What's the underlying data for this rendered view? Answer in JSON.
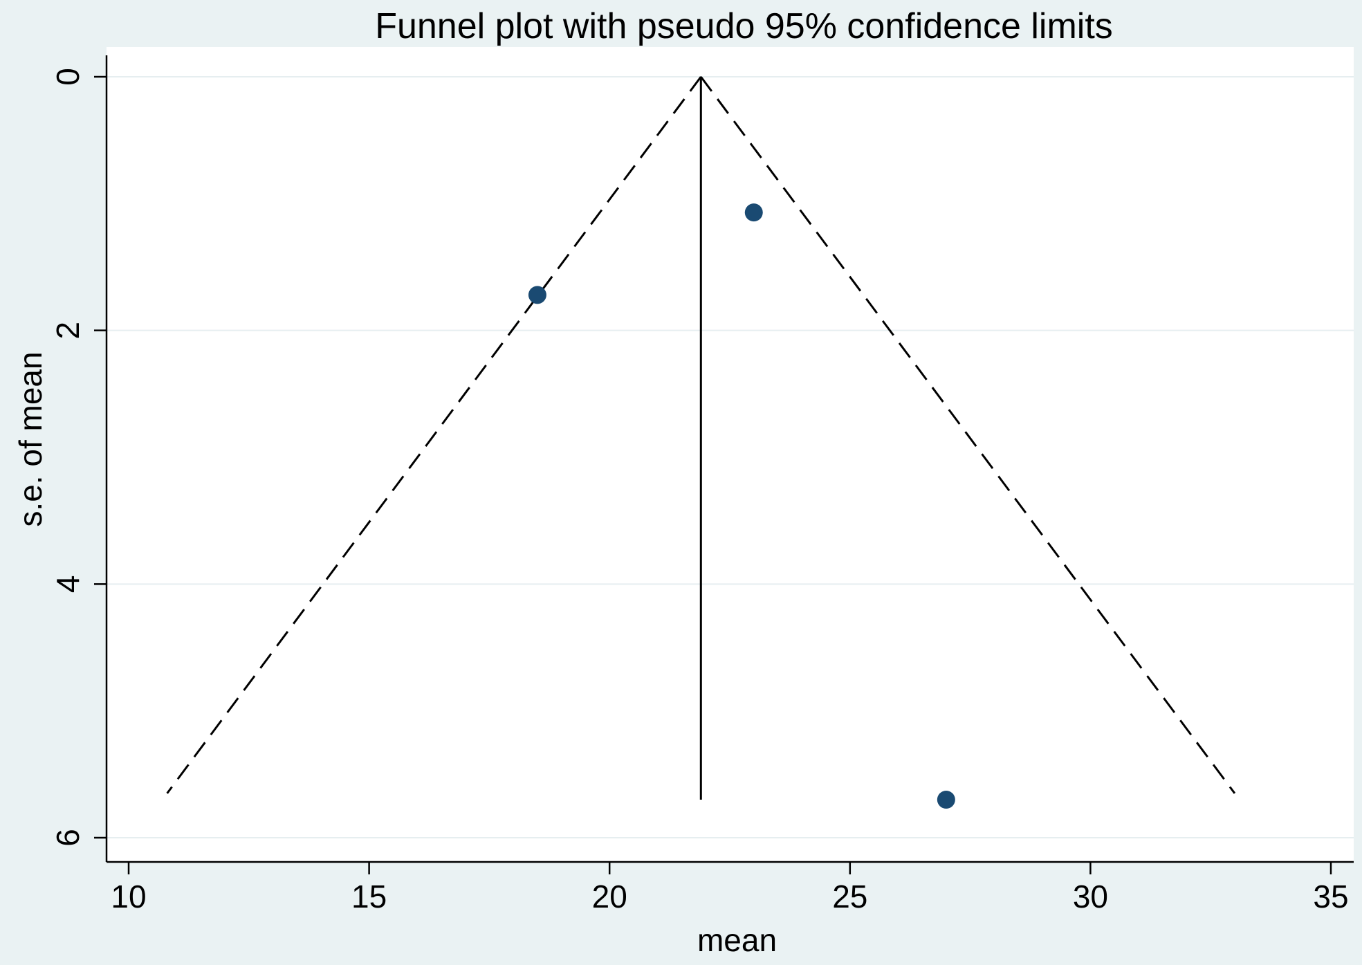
{
  "chart_data": {
    "type": "scatter",
    "title": "Funnel plot with pseudo 95% confidence limits",
    "xlabel": "mean",
    "ylabel": "s.e. of mean",
    "xlim": [
      10,
      35.5
    ],
    "ylim": [
      0,
      6
    ],
    "y_inverted": true,
    "xticks": [
      10,
      15,
      20,
      25,
      30,
      35
    ],
    "yticks": [
      0,
      2,
      4,
      6
    ],
    "grid": "horizontal",
    "legend": "none",
    "points": [
      {
        "x": 18.5,
        "y": 1.72
      },
      {
        "x": 23.0,
        "y": 1.07
      },
      {
        "x": 27.0,
        "y": 5.7
      }
    ],
    "pooled_mean": 21.9,
    "pooled_line_y": [
      0,
      5.7
    ],
    "confidence_limits": {
      "left": [
        {
          "x": 21.9,
          "y": 0
        },
        {
          "x": 10.8,
          "y": 5.65
        }
      ],
      "right": [
        {
          "x": 21.9,
          "y": 0
        },
        {
          "x": 33.0,
          "y": 5.65
        }
      ]
    },
    "colors": {
      "background": "#eaf2f3",
      "plot_background": "#ffffff",
      "marker": "#1a4a72",
      "grid": "#e6eef0",
      "line": "#000000"
    }
  }
}
